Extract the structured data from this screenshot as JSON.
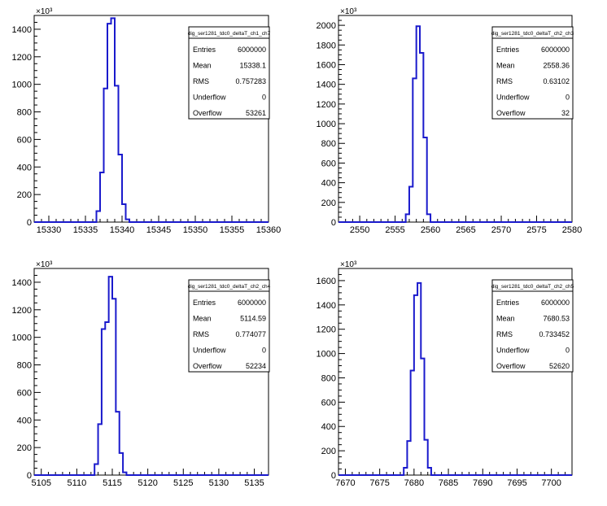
{
  "chart_data": [
    {
      "type": "histogram",
      "title": "",
      "xlabel": "",
      "ylabel": "",
      "y_multiplier_label": "×10³",
      "xlim": [
        15328,
        15360
      ],
      "ylim": [
        0,
        1500
      ],
      "x_ticks": [
        15330,
        15335,
        15340,
        15345,
        15350,
        15355,
        15360
      ],
      "y_ticks": [
        0,
        200,
        400,
        600,
        800,
        1000,
        1200,
        1400
      ],
      "bin_width": 0.5,
      "bin_start": 15336.5,
      "bin_values": [
        80,
        360,
        970,
        1440,
        1480,
        990,
        490,
        130,
        20
      ],
      "color": "#1a1acc",
      "stats": {
        "name": "dig_ser1281_tdc0_deltaT_ch1_ch7",
        "rows": [
          {
            "label": "Entries",
            "value": "6000000"
          },
          {
            "label": "Mean",
            "value": "15338.1"
          },
          {
            "label": "RMS",
            "value": "0.757283"
          },
          {
            "label": "Underflow",
            "value": "0"
          },
          {
            "label": "Overflow",
            "value": "53261"
          }
        ]
      }
    },
    {
      "type": "histogram",
      "title": "",
      "xlabel": "",
      "ylabel": "",
      "y_multiplier_label": "×10³",
      "xlim": [
        2547,
        2580
      ],
      "ylim": [
        0,
        2100
      ],
      "x_ticks": [
        2550,
        2555,
        2560,
        2565,
        2570,
        2575,
        2580
      ],
      "y_ticks": [
        0,
        200,
        400,
        600,
        800,
        1000,
        1200,
        1400,
        1600,
        1800,
        2000
      ],
      "bin_width": 0.5,
      "bin_start": 2556.5,
      "bin_values": [
        80,
        360,
        1460,
        1990,
        1720,
        860,
        80
      ],
      "color": "#1a1acc",
      "stats": {
        "name": "dig_ser1281_tdc0_deltaT_ch2_ch3",
        "rows": [
          {
            "label": "Entries",
            "value": "6000000"
          },
          {
            "label": "Mean",
            "value": "2558.36"
          },
          {
            "label": "RMS",
            "value": "0.63102"
          },
          {
            "label": "Underflow",
            "value": "0"
          },
          {
            "label": "Overflow",
            "value": "32"
          }
        ]
      }
    },
    {
      "type": "histogram",
      "title": "",
      "xlabel": "",
      "ylabel": "",
      "y_multiplier_label": "×10³",
      "xlim": [
        5104,
        5137
      ],
      "ylim": [
        0,
        1500
      ],
      "x_ticks": [
        5105,
        5110,
        5115,
        5120,
        5125,
        5130,
        5135
      ],
      "y_ticks": [
        0,
        200,
        400,
        600,
        800,
        1000,
        1200,
        1400
      ],
      "bin_width": 0.5,
      "bin_start": 5112.5,
      "bin_values": [
        80,
        370,
        1060,
        1110,
        1440,
        1280,
        460,
        160,
        20
      ],
      "color": "#1a1acc",
      "stats": {
        "name": "dig_ser1281_tdc0_deltaT_ch2_ch4",
        "rows": [
          {
            "label": "Entries",
            "value": "6000000"
          },
          {
            "label": "Mean",
            "value": "5114.59"
          },
          {
            "label": "RMS",
            "value": "0.774077"
          },
          {
            "label": "Underflow",
            "value": "0"
          },
          {
            "label": "Overflow",
            "value": "52234"
          }
        ]
      }
    },
    {
      "type": "histogram",
      "title": "",
      "xlabel": "",
      "ylabel": "",
      "y_multiplier_label": "×10³",
      "xlim": [
        7669,
        7703
      ],
      "ylim": [
        0,
        1700
      ],
      "x_ticks": [
        7670,
        7675,
        7680,
        7685,
        7690,
        7695,
        7700
      ],
      "y_ticks": [
        0,
        200,
        400,
        600,
        800,
        1000,
        1200,
        1400,
        1600
      ],
      "bin_width": 0.5,
      "bin_start": 7678.5,
      "bin_values": [
        60,
        280,
        860,
        1480,
        1580,
        960,
        290,
        60
      ],
      "color": "#1a1acc",
      "stats": {
        "name": "dig_ser1281_tdc0_deltaT_ch2_ch5",
        "rows": [
          {
            "label": "Entries",
            "value": "6000000"
          },
          {
            "label": "Mean",
            "value": "7680.53"
          },
          {
            "label": "RMS",
            "value": "0.733452"
          },
          {
            "label": "Underflow",
            "value": "0"
          },
          {
            "label": "Overflow",
            "value": "52620"
          }
        ]
      }
    }
  ]
}
